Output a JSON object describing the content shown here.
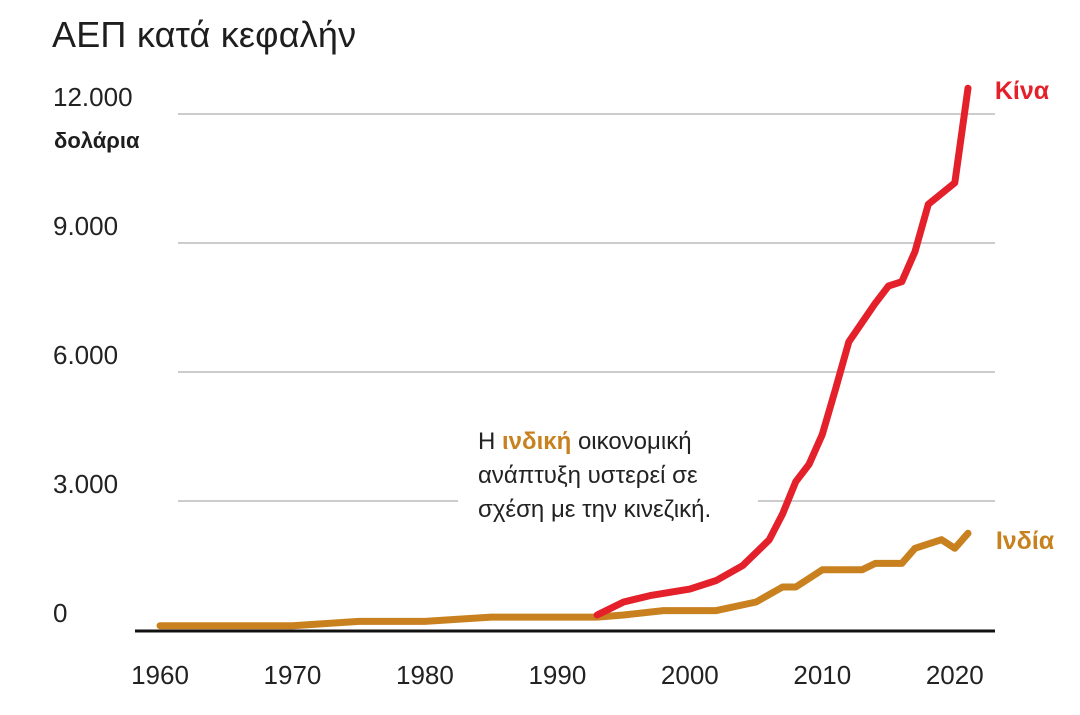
{
  "chart_data": {
    "type": "line",
    "title": "ΑΕΠ κατά κεφαλήν",
    "ylabel": "δολάρια",
    "xlabel": "",
    "xlim": [
      1960,
      2022
    ],
    "ylim": [
      0,
      12000
    ],
    "x_ticks": [
      1960,
      1970,
      1980,
      1990,
      2000,
      2010,
      2020
    ],
    "y_ticks": [
      {
        "value": 0,
        "label": "0"
      },
      {
        "value": 3000,
        "label": "3.000"
      },
      {
        "value": 6000,
        "label": "6.000"
      },
      {
        "value": 9000,
        "label": "9.000"
      },
      {
        "value": 12000,
        "label": "12.000"
      }
    ],
    "series": [
      {
        "name": "Ινδία",
        "color": "#c8811e",
        "points": [
          [
            1960,
            100
          ],
          [
            1965,
            100
          ],
          [
            1970,
            100
          ],
          [
            1975,
            200
          ],
          [
            1980,
            200
          ],
          [
            1985,
            300
          ],
          [
            1990,
            300
          ],
          [
            1993,
            300
          ],
          [
            1995,
            350
          ],
          [
            1998,
            450
          ],
          [
            2002,
            450
          ],
          [
            2005,
            650
          ],
          [
            2007,
            1000
          ],
          [
            2008,
            1000
          ],
          [
            2010,
            1400
          ],
          [
            2013,
            1400
          ],
          [
            2014,
            1550
          ],
          [
            2016,
            1550
          ],
          [
            2017,
            1900
          ],
          [
            2019,
            2100
          ],
          [
            2020,
            1900
          ],
          [
            2021,
            2250
          ]
        ]
      },
      {
        "name": "Κίνα",
        "color": "#e4202a",
        "points": [
          [
            1993,
            350
          ],
          [
            1995,
            650
          ],
          [
            1997,
            800
          ],
          [
            2000,
            950
          ],
          [
            2002,
            1150
          ],
          [
            2004,
            1500
          ],
          [
            2006,
            2100
          ],
          [
            2007,
            2700
          ],
          [
            2008,
            3450
          ],
          [
            2009,
            3850
          ],
          [
            2010,
            4550
          ],
          [
            2011,
            5600
          ],
          [
            2012,
            6700
          ],
          [
            2014,
            7600
          ],
          [
            2015,
            8000
          ],
          [
            2016,
            8100
          ],
          [
            2017,
            8800
          ],
          [
            2018,
            9900
          ],
          [
            2020,
            10400
          ],
          [
            2021,
            12600
          ]
        ]
      }
    ],
    "annotation": {
      "prefix": "Η ",
      "highlight": "ινδική",
      "suffix": " οικονομική ανάπτυξη υστερεί σε σχέση με την κινεζική."
    }
  }
}
